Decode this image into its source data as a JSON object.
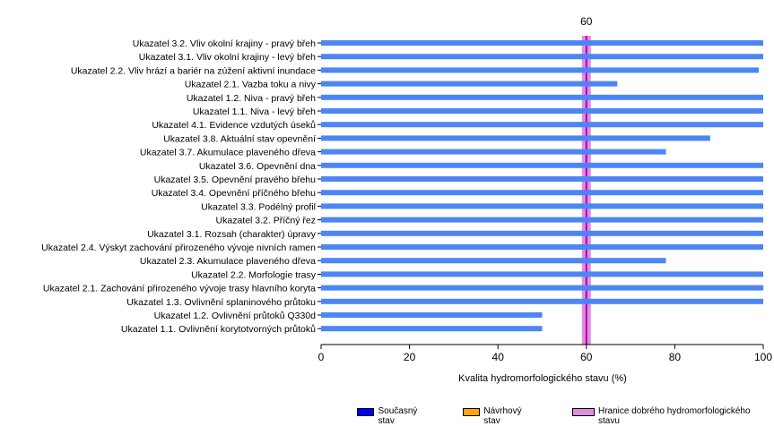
{
  "colors": {
    "bar": "#4d86f4",
    "threshold_fill": "#e08ee0",
    "threshold_line": "#b000b0",
    "current": "#0000ff",
    "proposed": "#ffa500",
    "axis": "#000000"
  },
  "legend": [
    {
      "label": "Současný stav",
      "color": "#0000ff"
    },
    {
      "label": "Návrhový stav",
      "color": "#ffa500"
    },
    {
      "label": "Hranice dobrého hydromorfologického stavu",
      "color": "#e08ee0"
    }
  ],
  "chart_data": {
    "type": "bar",
    "orientation": "horizontal",
    "xlabel": "Kvalita hydromorfologického stavu (%)",
    "xlim": [
      0,
      100
    ],
    "xticks": [
      0,
      20,
      40,
      60,
      80,
      100
    ],
    "threshold": {
      "value": 60,
      "label": "60"
    },
    "categories": [
      "Ukazatel 3.2. Vliv okolní krajiny - pravý břeh",
      "Ukazatel 3.1. Vliv okolní krajiny - levý břeh",
      "Ukazatel 2.2. Vliv hrází a bariér na zúžení aktivní inundace",
      "Ukazatel 2.1. Vazba toku a nivy",
      "Ukazatel 1.2. Niva - pravý břeh",
      "Ukazatel 1.1. Niva - levý břeh",
      "Ukazatel 4.1. Evidence vzdutých úseků",
      "Ukazatel 3.8. Aktuální stav opevnění",
      "Ukazatel 3.7. Akumulace plaveného dřeva",
      "Ukazatel 3.6. Opevnění dna",
      "Ukazatel 3.5. Opevnění pravého břehu",
      "Ukazatel 3.4. Opevnění příčného břehu",
      "Ukazatel 3.3. Podélný profil",
      "Ukazatel 3.2. Příčný řez",
      "Ukazatel 3.1. Rozsah (charakter) úpravy",
      "Ukazatel 2.4. Výskyt zachování přirozeného vývoje nivních ramen",
      "Ukazatel 2.3. Akumulace plaveného dřeva",
      "Ukazatel 2.2. Morfologie trasy",
      "Ukazatel 2.1. Zachování přirozeného vývoje trasy hlavního koryta",
      "Ukazatel 1.3. Ovlivnění splaninového průtoku",
      "Ukazatel 1.2. Ovlivnění průtoků Q330d",
      "Ukazatel 1.1. Ovlivnění korytotvorných průtoků"
    ],
    "series": [
      {
        "name": "Současný stav",
        "values": [
          100,
          100,
          99,
          67,
          100,
          100,
          100,
          88,
          78,
          100,
          100,
          100,
          100,
          100,
          100,
          100,
          78,
          100,
          100,
          100,
          50,
          50
        ]
      }
    ],
    "grid": false,
    "legend_position": "bottom-right"
  }
}
